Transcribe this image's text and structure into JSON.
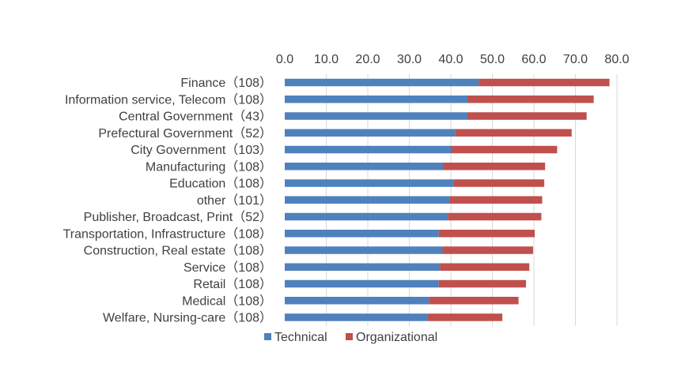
{
  "chart_data": {
    "type": "bar",
    "orientation": "horizontal",
    "stacked": true,
    "title": "",
    "xlabel": "",
    "ylabel": "",
    "xlim": [
      0,
      80
    ],
    "xticks": [
      "0.0",
      "10.0",
      "20.0",
      "30.0",
      "40.0",
      "50.0",
      "60.0",
      "70.0",
      "80.0"
    ],
    "axis_position": "top",
    "grid": true,
    "legend_position": "bottom",
    "categories": [
      "Finance（108）",
      "Information service, Telecom（108）",
      "Central Government（43）",
      "Prefectural Government（52）",
      "City Government（103）",
      "Manufacturing（108）",
      "Education（108）",
      "other（101）",
      "Publisher, Broadcast, Print（52）",
      "Transportation, Infrastructure（108）",
      "Construction, Real estate（108）",
      "Service（108）",
      "Retail（108）",
      "Medical（108）",
      "Welfare, Nursing-care（108）"
    ],
    "series": [
      {
        "name": "Technical",
        "color": "#4f81bd",
        "values": [
          46.7,
          44.0,
          44.0,
          41.0,
          40.0,
          38.1,
          40.6,
          39.7,
          39.3,
          37.1,
          38.0,
          37.4,
          37.1,
          34.7,
          34.4
        ]
      },
      {
        "name": "Organizational",
        "color": "#c0504d",
        "values": [
          31.5,
          30.4,
          28.7,
          28.1,
          25.6,
          24.6,
          21.9,
          22.3,
          22.5,
          23.1,
          21.8,
          21.5,
          21.0,
          21.6,
          18.0
        ]
      }
    ]
  }
}
